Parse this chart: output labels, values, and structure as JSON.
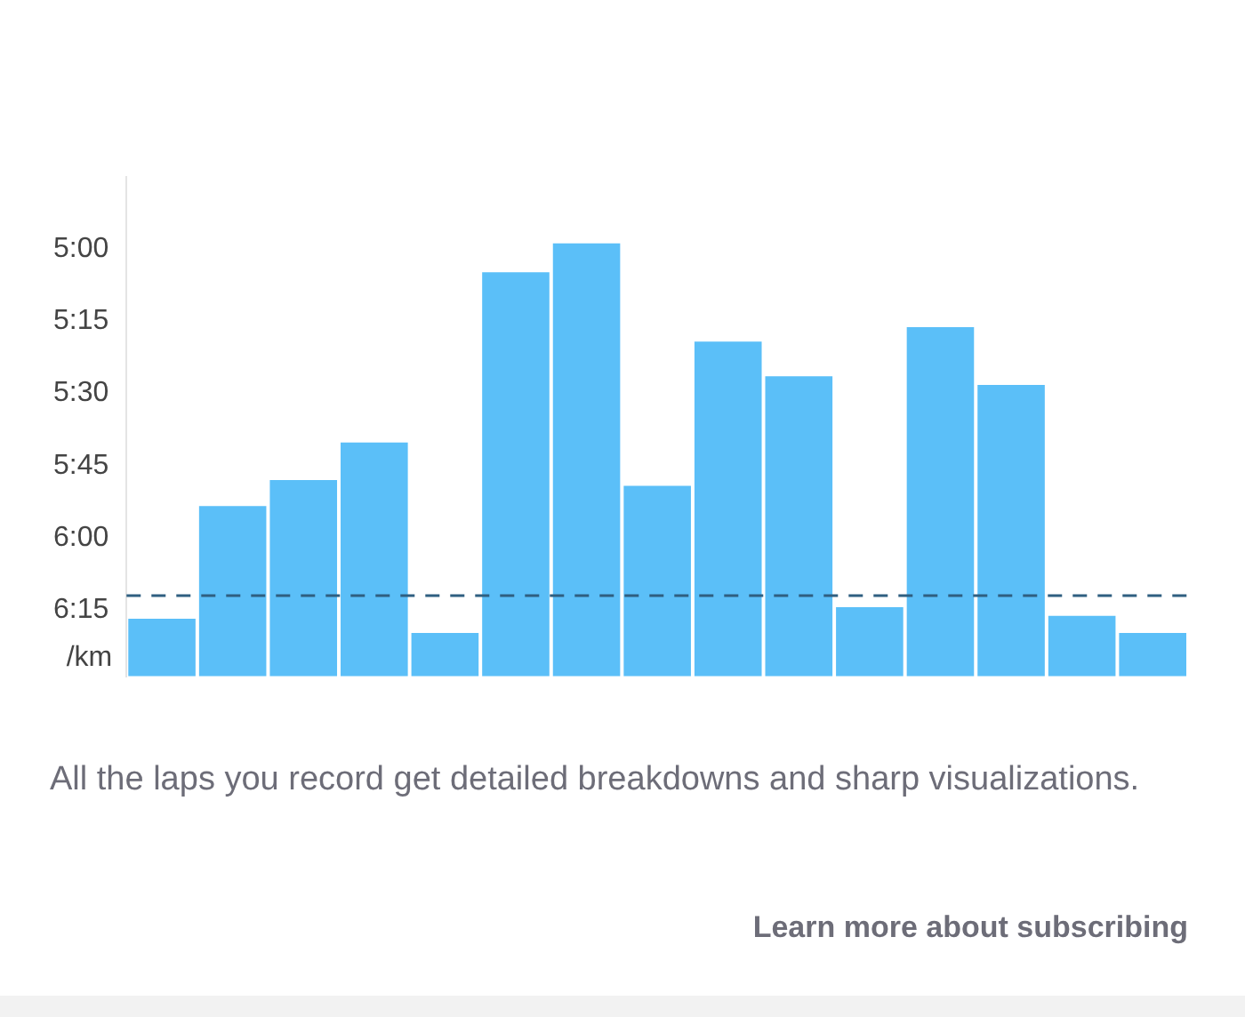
{
  "chart_data": {
    "type": "bar",
    "categories": [
      null,
      null,
      null,
      null,
      null,
      null,
      null,
      null,
      null,
      null,
      null,
      null,
      null,
      null,
      null
    ],
    "values": [
      -0.2,
      -0.59,
      -0.68,
      -0.81,
      -0.15,
      -1.4,
      -1.5,
      -0.66,
      -1.16,
      -1.04,
      -0.24,
      -1.21,
      -1.01,
      -0.21,
      -0.15
    ],
    "base": [
      6.48,
      6.48,
      6.48,
      6.48,
      6.48,
      6.48,
      6.48,
      6.48,
      6.48,
      6.48,
      6.48,
      6.48,
      6.48,
      6.48,
      6.48
    ],
    "color": "#5bbff8",
    "ylim": [
      6.48,
      4.75
    ],
    "yticks": [
      {
        "value": 5,
        "label": "5:00"
      },
      {
        "value": 5.25,
        "label": "5:15"
      },
      {
        "value": 5.5,
        "label": "5:30"
      },
      {
        "value": 5.75,
        "label": "5:45"
      },
      {
        "value": 6,
        "label": "6:00"
      },
      {
        "value": 6.25,
        "label": "6:15"
      }
    ],
    "ylabel": "/km",
    "grid": false,
    "legend": false,
    "ref_lines": [
      {
        "axis": "y",
        "value": 6.2,
        "color": "#2f5f80",
        "line_style": "dashed"
      }
    ],
    "annotations": [
      "All the laps you record get detailed breakdowns and sharp visualizations.",
      "Learn more about subscribing"
    ]
  }
}
